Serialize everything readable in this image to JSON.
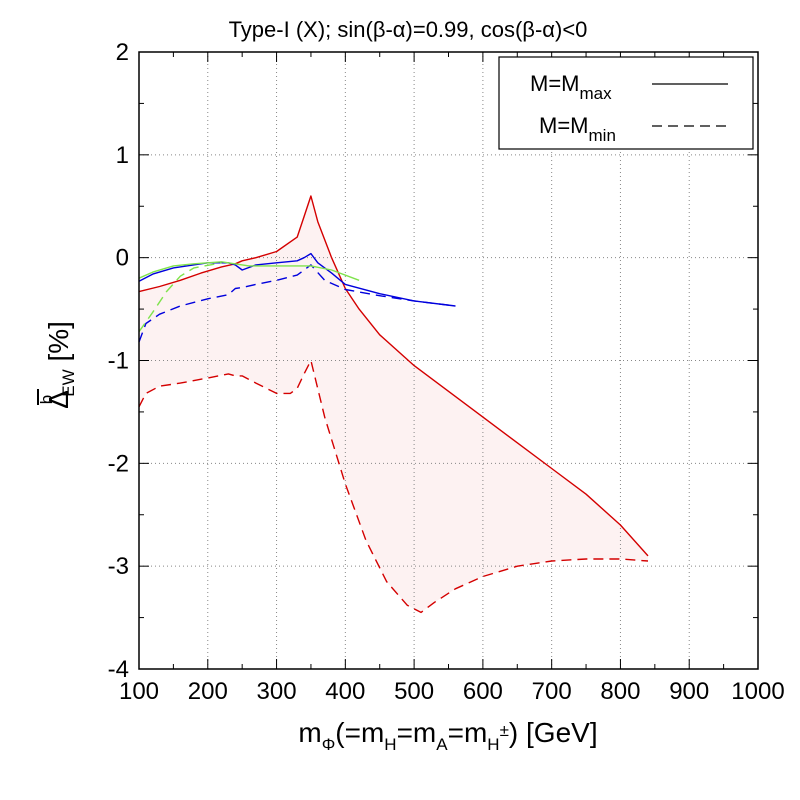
{
  "chart_data": {
    "type": "line",
    "title": "Type-I (X); sin(β-α)=0.99, cos(β-α)<0",
    "xlabel": {
      "main": "m",
      "sub_phi": "Φ",
      "eq1": "(=m",
      "sub_H": "H",
      "eq2": "=m",
      "sub_A": "A",
      "eq3": "=m",
      "sub_Hpm": "H",
      "sup_pm": "±",
      "tail": ") [GeV]"
    },
    "ylabel": {
      "main": "Δ",
      "sup": "b",
      "sub": "EW",
      "tail": " [%]"
    },
    "xlim": [
      100,
      1000
    ],
    "ylim": [
      -4,
      2
    ],
    "xticks": [
      100,
      200,
      300,
      400,
      500,
      600,
      700,
      800,
      900,
      1000
    ],
    "yticks": [
      -4,
      -3,
      -2,
      -1,
      0,
      1,
      2
    ],
    "xtick_labels": [
      "100",
      "200",
      "300",
      "400",
      "500",
      "600",
      "700",
      "800",
      "900",
      "1000"
    ],
    "ytick_labels": [
      "-4",
      "-3",
      "-2",
      "-1",
      "0",
      "1",
      "2"
    ],
    "grid": true,
    "legend": {
      "position": "top-right",
      "entries": [
        {
          "text": "M=M",
          "sub": "max",
          "style": "solid"
        },
        {
          "text": "M=M",
          "sub": "min",
          "style": "dashed"
        }
      ]
    },
    "band_color": "#fdf2f2",
    "series": [
      {
        "name": "red M=Mmax",
        "color": "#d40000",
        "style": "solid",
        "x": [
          100,
          130,
          160,
          190,
          220,
          240,
          250,
          270,
          300,
          330,
          340,
          350,
          360,
          380,
          400,
          420,
          450,
          500,
          550,
          600,
          650,
          700,
          750,
          800,
          840
        ],
        "y": [
          -0.33,
          -0.28,
          -0.22,
          -0.15,
          -0.09,
          -0.06,
          -0.03,
          0.0,
          0.06,
          0.2,
          0.4,
          0.6,
          0.35,
          0.0,
          -0.3,
          -0.5,
          -0.75,
          -1.05,
          -1.3,
          -1.55,
          -1.8,
          -2.05,
          -2.3,
          -2.6,
          -2.9
        ]
      },
      {
        "name": "red M=Mmin",
        "color": "#d40000",
        "style": "dashed",
        "x": [
          100,
          110,
          130,
          160,
          200,
          230,
          240,
          250,
          270,
          300,
          320,
          330,
          340,
          350,
          370,
          400,
          430,
          460,
          490,
          510,
          530,
          560,
          600,
          650,
          700,
          750,
          800,
          840
        ],
        "y": [
          -1.45,
          -1.32,
          -1.25,
          -1.22,
          -1.17,
          -1.13,
          -1.15,
          -1.15,
          -1.22,
          -1.32,
          -1.32,
          -1.27,
          -1.13,
          -1.0,
          -1.55,
          -2.2,
          -2.75,
          -3.15,
          -3.38,
          -3.45,
          -3.35,
          -3.22,
          -3.1,
          -3.0,
          -2.95,
          -2.93,
          -2.93,
          -2.95
        ]
      },
      {
        "name": "blue M=Mmax",
        "color": "#0000dd",
        "style": "solid",
        "x": [
          100,
          120,
          150,
          200,
          230,
          240,
          250,
          270,
          300,
          330,
          340,
          350,
          360,
          380,
          400,
          450,
          500,
          560
        ],
        "y": [
          -0.23,
          -0.16,
          -0.1,
          -0.05,
          -0.05,
          -0.07,
          -0.12,
          -0.07,
          -0.05,
          -0.03,
          0.0,
          0.04,
          -0.05,
          -0.15,
          -0.26,
          -0.35,
          -0.42,
          -0.47
        ]
      },
      {
        "name": "blue M=Mmin",
        "color": "#0000dd",
        "style": "dashed",
        "x": [
          100,
          110,
          130,
          160,
          200,
          230,
          240,
          250,
          270,
          300,
          330,
          350,
          370,
          400,
          450,
          500,
          560
        ],
        "y": [
          -0.82,
          -0.64,
          -0.55,
          -0.47,
          -0.4,
          -0.36,
          -0.3,
          -0.29,
          -0.26,
          -0.22,
          -0.17,
          -0.07,
          -0.22,
          -0.31,
          -0.37,
          -0.42,
          -0.47
        ]
      },
      {
        "name": "green M=Mmax",
        "color": "#7fe34c",
        "style": "solid",
        "x": [
          100,
          120,
          150,
          180,
          220,
          260,
          300,
          350,
          380,
          420
        ],
        "y": [
          -0.2,
          -0.14,
          -0.08,
          -0.06,
          -0.04,
          -0.08,
          -0.08,
          -0.08,
          -0.12,
          -0.22
        ]
      },
      {
        "name": "green M=Mmin",
        "color": "#7fe34c",
        "style": "dashed",
        "x": [
          100,
          120,
          140,
          160,
          180,
          220
        ],
        "y": [
          -0.72,
          -0.53,
          -0.33,
          -0.18,
          -0.1,
          -0.05
        ]
      }
    ]
  }
}
